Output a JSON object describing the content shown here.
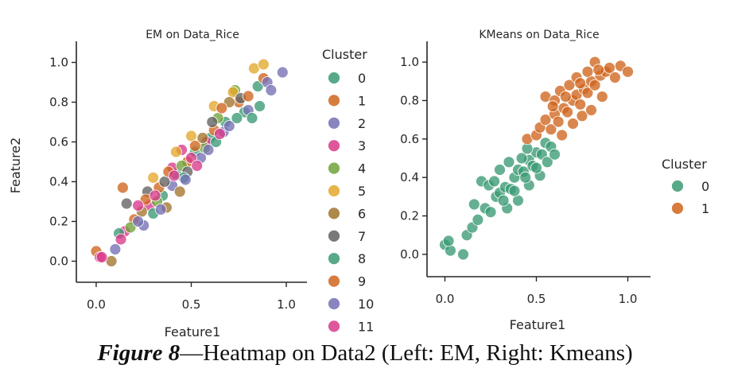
{
  "caption": {
    "label": "Figure 8",
    "dash": "—",
    "text": "Heatmap on Data2 (Left: EM, Right: Kmeans)"
  },
  "chart_data": [
    {
      "type": "scatter",
      "title": "EM on Data_Rice",
      "xlabel": "Feature1",
      "ylabel": "Feature2",
      "xlim": [
        -0.05,
        1.05
      ],
      "ylim": [
        -0.05,
        1.05
      ],
      "xticks": [
        "0.0",
        "0.5",
        "1.0"
      ],
      "yticks": [
        "0.0",
        "0.2",
        "0.4",
        "0.6",
        "0.8",
        "1.0"
      ],
      "legend": {
        "title": "Cluster",
        "placement": "right",
        "entries": [
          "0",
          "1",
          "2",
          "3",
          "4",
          "5",
          "6",
          "7",
          "8",
          "9",
          "10",
          "11"
        ],
        "colors": [
          "#3a9a73",
          "#d0651d",
          "#7470b4",
          "#d9398a",
          "#6fa239",
          "#e3a82b",
          "#a0742d",
          "#626262",
          "#3a9a73",
          "#d0651d",
          "#7470b4",
          "#d9398a"
        ]
      },
      "series": [
        {
          "name": "0",
          "points": [
            [
              0.35,
              0.33
            ],
            [
              0.42,
              0.44
            ],
            [
              0.52,
              0.55
            ],
            [
              0.6,
              0.62
            ],
            [
              0.68,
              0.7
            ],
            [
              0.78,
              0.75
            ],
            [
              0.85,
              0.88
            ]
          ]
        },
        {
          "name": "1",
          "points": [
            [
              0.0,
              0.05
            ],
            [
              0.2,
              0.21
            ],
            [
              0.33,
              0.37
            ],
            [
              0.48,
              0.5
            ],
            [
              0.62,
              0.66
            ],
            [
              0.75,
              0.8
            ],
            [
              0.88,
              0.92
            ]
          ]
        },
        {
          "name": "2",
          "points": [
            [
              0.25,
              0.18
            ],
            [
              0.4,
              0.38
            ],
            [
              0.55,
              0.52
            ],
            [
              0.67,
              0.65
            ],
            [
              0.8,
              0.76
            ],
            [
              0.9,
              0.9
            ],
            [
              0.98,
              0.95
            ]
          ]
        },
        {
          "name": "3",
          "points": [
            [
              0.02,
              0.02
            ],
            [
              0.15,
              0.15
            ],
            [
              0.28,
              0.28
            ],
            [
              0.4,
              0.47
            ],
            [
              0.5,
              0.52
            ],
            [
              0.58,
              0.6
            ],
            [
              0.45,
              0.56
            ]
          ]
        },
        {
          "name": "4",
          "points": [
            [
              0.18,
              0.17
            ],
            [
              0.32,
              0.3
            ],
            [
              0.45,
              0.48
            ],
            [
              0.57,
              0.57
            ],
            [
              0.64,
              0.72
            ],
            [
              0.73,
              0.86
            ]
          ]
        },
        {
          "name": "5",
          "points": [
            [
              0.3,
              0.42
            ],
            [
              0.42,
              0.55
            ],
            [
              0.5,
              0.63
            ],
            [
              0.62,
              0.78
            ],
            [
              0.72,
              0.85
            ],
            [
              0.83,
              0.97
            ],
            [
              0.88,
              0.99
            ]
          ]
        },
        {
          "name": "6",
          "points": [
            [
              0.08,
              0.0
            ],
            [
              0.24,
              0.25
            ],
            [
              0.37,
              0.27
            ],
            [
              0.44,
              0.35
            ],
            [
              0.56,
              0.62
            ],
            [
              0.7,
              0.8
            ]
          ]
        },
        {
          "name": "7",
          "points": [
            [
              0.16,
              0.29
            ],
            [
              0.27,
              0.35
            ],
            [
              0.36,
              0.4
            ],
            [
              0.48,
              0.45
            ],
            [
              0.61,
              0.7
            ],
            [
              0.76,
              0.82
            ]
          ]
        },
        {
          "name": "8",
          "points": [
            [
              0.12,
              0.14
            ],
            [
              0.3,
              0.24
            ],
            [
              0.46,
              0.42
            ],
            [
              0.63,
              0.6
            ],
            [
              0.74,
              0.72
            ],
            [
              0.82,
              0.72
            ],
            [
              0.86,
              0.78
            ]
          ]
        },
        {
          "name": "9",
          "points": [
            [
              0.14,
              0.37
            ],
            [
              0.26,
              0.31
            ],
            [
              0.38,
              0.45
            ],
            [
              0.52,
              0.58
            ],
            [
              0.66,
              0.77
            ],
            [
              0.8,
              0.83
            ]
          ]
        },
        {
          "name": "10",
          "points": [
            [
              0.1,
              0.06
            ],
            [
              0.22,
              0.2
            ],
            [
              0.34,
              0.26
            ],
            [
              0.47,
              0.41
            ],
            [
              0.59,
              0.56
            ],
            [
              0.7,
              0.68
            ],
            [
              0.92,
              0.86
            ]
          ]
        },
        {
          "name": "11",
          "points": [
            [
              0.03,
              0.02
            ],
            [
              0.13,
              0.11
            ],
            [
              0.22,
              0.28
            ],
            [
              0.31,
              0.33
            ],
            [
              0.41,
              0.43
            ],
            [
              0.53,
              0.48
            ],
            [
              0.65,
              0.64
            ]
          ]
        }
      ]
    },
    {
      "type": "scatter",
      "title": "KMeans on Data_Rice",
      "xlabel": "Feature1",
      "ylabel": "",
      "xlim": [
        -0.05,
        1.05
      ],
      "ylim": [
        -0.05,
        1.05
      ],
      "xticks": [
        "0.0",
        "0.5",
        "1.0"
      ],
      "yticks": [
        "0.0",
        "0.2",
        "0.4",
        "0.6",
        "0.8",
        "1.0"
      ],
      "legend": {
        "title": "Cluster",
        "placement": "outside right",
        "entries": [
          "0",
          "1"
        ],
        "colors": [
          "#3a9a73",
          "#d0651d"
        ]
      },
      "series": [
        {
          "name": "0",
          "points": [
            [
              0.0,
              0.05
            ],
            [
              0.03,
              0.02
            ],
            [
              0.02,
              0.07
            ],
            [
              0.1,
              0.0
            ],
            [
              0.12,
              0.1
            ],
            [
              0.15,
              0.14
            ],
            [
              0.18,
              0.18
            ],
            [
              0.22,
              0.24
            ],
            [
              0.25,
              0.22
            ],
            [
              0.28,
              0.3
            ],
            [
              0.3,
              0.32
            ],
            [
              0.33,
              0.35
            ],
            [
              0.36,
              0.34
            ],
            [
              0.38,
              0.4
            ],
            [
              0.4,
              0.44
            ],
            [
              0.43,
              0.43
            ],
            [
              0.46,
              0.49
            ],
            [
              0.48,
              0.46
            ],
            [
              0.5,
              0.53
            ],
            [
              0.53,
              0.52
            ],
            [
              0.55,
              0.58
            ],
            [
              0.58,
              0.56
            ],
            [
              0.2,
              0.38
            ],
            [
              0.24,
              0.36
            ],
            [
              0.3,
              0.44
            ],
            [
              0.35,
              0.48
            ],
            [
              0.42,
              0.5
            ],
            [
              0.45,
              0.55
            ],
            [
              0.34,
              0.24
            ],
            [
              0.4,
              0.28
            ],
            [
              0.46,
              0.36
            ],
            [
              0.52,
              0.41
            ],
            [
              0.56,
              0.48
            ],
            [
              0.6,
              0.52
            ],
            [
              0.16,
              0.26
            ],
            [
              0.27,
              0.38
            ],
            [
              0.32,
              0.28
            ],
            [
              0.38,
              0.33
            ],
            [
              0.44,
              0.4
            ],
            [
              0.5,
              0.45
            ]
          ]
        },
        {
          "name": "1",
          "points": [
            [
              0.45,
              0.6
            ],
            [
              0.5,
              0.62
            ],
            [
              0.52,
              0.66
            ],
            [
              0.55,
              0.7
            ],
            [
              0.58,
              0.65
            ],
            [
              0.6,
              0.73
            ],
            [
              0.62,
              0.69
            ],
            [
              0.65,
              0.76
            ],
            [
              0.67,
              0.74
            ],
            [
              0.7,
              0.8
            ],
            [
              0.72,
              0.83
            ],
            [
              0.74,
              0.78
            ],
            [
              0.76,
              0.86
            ],
            [
              0.78,
              0.84
            ],
            [
              0.8,
              0.9
            ],
            [
              0.82,
              0.88
            ],
            [
              0.85,
              0.93
            ],
            [
              0.88,
              0.95
            ],
            [
              0.9,
              0.97
            ],
            [
              0.96,
              0.98
            ],
            [
              1.0,
              0.95
            ],
            [
              0.93,
              0.92
            ],
            [
              0.55,
              0.82
            ],
            [
              0.6,
              0.8
            ],
            [
              0.63,
              0.85
            ],
            [
              0.68,
              0.88
            ],
            [
              0.72,
              0.92
            ],
            [
              0.78,
              0.95
            ],
            [
              0.82,
              1.0
            ],
            [
              0.64,
              0.62
            ],
            [
              0.7,
              0.68
            ],
            [
              0.75,
              0.72
            ],
            [
              0.8,
              0.75
            ],
            [
              0.86,
              0.82
            ],
            [
              0.59,
              0.77
            ],
            [
              0.66,
              0.82
            ],
            [
              0.74,
              0.89
            ],
            [
              0.84,
              0.96
            ]
          ]
        }
      ]
    }
  ]
}
